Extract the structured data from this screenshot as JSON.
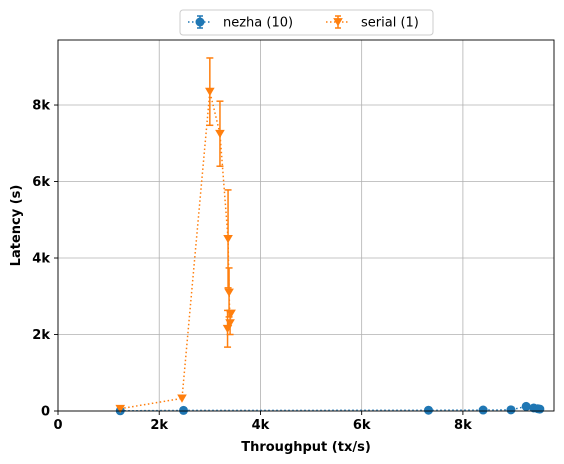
{
  "chart_data": {
    "type": "line",
    "xlabel": "Throughput (tx/s)",
    "ylabel": "Latency (s)",
    "xlim": [
      0,
      9800
    ],
    "ylim": [
      0,
      9700
    ],
    "x_ticks": [
      0,
      2000,
      4000,
      6000,
      8000
    ],
    "x_tick_labels": [
      "0",
      "2k",
      "4k",
      "6k",
      "8k"
    ],
    "y_ticks": [
      0,
      2000,
      4000,
      6000,
      8000
    ],
    "y_tick_labels": [
      "0",
      "2k",
      "4k",
      "6k",
      "8k"
    ],
    "grid": true,
    "legend": {
      "placement": "top-center",
      "columns": 2
    },
    "series": [
      {
        "name": "nezha (10)",
        "color": "#1f77b4",
        "marker": "circle",
        "linestyle": "dotted",
        "points": [
          {
            "x": 1230,
            "y": 5
          },
          {
            "x": 2480,
            "y": 15
          },
          {
            "x": 7320,
            "y": 20
          },
          {
            "x": 8400,
            "y": 25
          },
          {
            "x": 8950,
            "y": 30
          },
          {
            "x": 9250,
            "y": 120
          },
          {
            "x": 9400,
            "y": 80
          },
          {
            "x": 9480,
            "y": 60
          },
          {
            "x": 9520,
            "y": 50
          }
        ]
      },
      {
        "name": "serial (1)",
        "color": "#ff7f0e",
        "marker": "triangle-down",
        "linestyle": "dotted",
        "points": [
          {
            "x": 1230,
            "y": 60,
            "err": 0
          },
          {
            "x": 2450,
            "y": 330,
            "err": 0
          },
          {
            "x": 3000,
            "y": 8350,
            "err": 880
          },
          {
            "x": 3200,
            "y": 7250,
            "err": 850
          },
          {
            "x": 3360,
            "y": 4500,
            "err": 1280
          },
          {
            "x": 3380,
            "y": 3100,
            "err": 640
          },
          {
            "x": 3400,
            "y": 2300,
            "err": 300
          },
          {
            "x": 3420,
            "y": 2550,
            "err": 0
          },
          {
            "x": 3350,
            "y": 2150,
            "err": 480
          }
        ]
      }
    ]
  }
}
